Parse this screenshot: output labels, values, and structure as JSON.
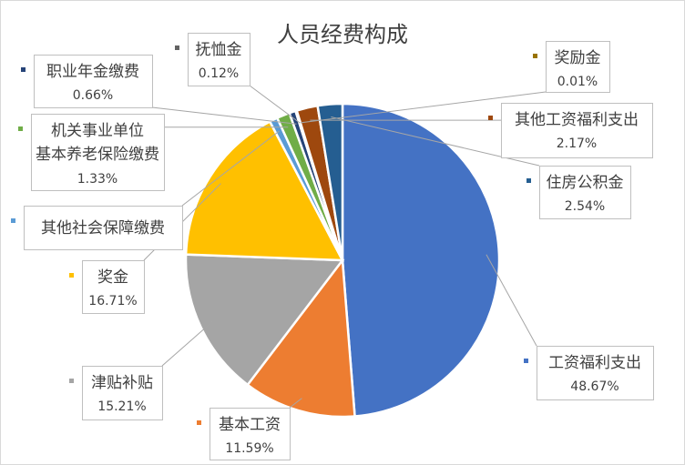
{
  "chart_data": {
    "type": "pie",
    "title": "人员经费构成",
    "legend": "none",
    "slices": [
      {
        "label": "工资福利支出",
        "value": 48.67,
        "display": "48.67%",
        "color": "#4472C4"
      },
      {
        "label": "基本工资",
        "value": 11.59,
        "display": "11.59%",
        "color": "#ED7D31"
      },
      {
        "label": "津贴补贴",
        "value": 15.21,
        "display": "15.21%",
        "color": "#A5A5A5"
      },
      {
        "label": "奖金",
        "value": 16.71,
        "display": "16.71%",
        "color": "#FFC000"
      },
      {
        "label": "其他社会保障缴费",
        "value": 0.83,
        "display": "",
        "color": "#5B9BD5"
      },
      {
        "label": "机关事业单位基本养老保险缴费",
        "value": 1.33,
        "display": "1.33%",
        "color": "#70AD47"
      },
      {
        "label": "职业年金缴费",
        "value": 0.66,
        "display": "0.66%",
        "color": "#264478"
      },
      {
        "label": "抚恤金",
        "value": 0.12,
        "display": "0.12%",
        "color": "#636363"
      },
      {
        "label": "奖励金",
        "value": 0.01,
        "display": "0.01%",
        "color": "#997300"
      },
      {
        "label": "其他工资福利支出",
        "value": 2.17,
        "display": "2.17%",
        "color": "#9E480E"
      },
      {
        "label": "住房公积金",
        "value": 2.54,
        "display": "2.54%",
        "color": "#255E91"
      }
    ]
  }
}
